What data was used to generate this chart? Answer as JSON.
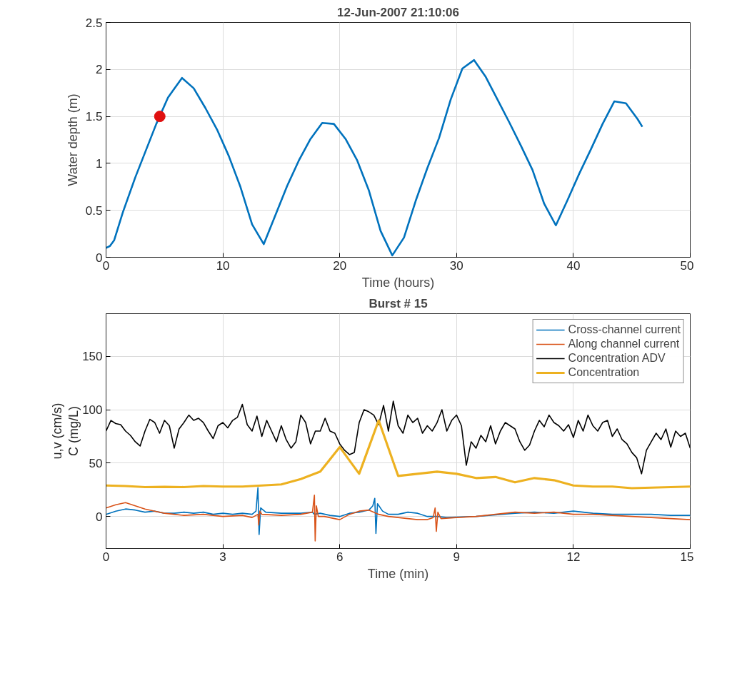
{
  "chart_data": [
    {
      "type": "line",
      "title": "12-Jun-2007 21:10:06",
      "xlabel": "Time (hours)",
      "ylabel": "Water depth (m)",
      "xlim": [
        0,
        50
      ],
      "xticks": [
        0,
        10,
        20,
        30,
        40,
        50
      ],
      "ylim": [
        0,
        2.5
      ],
      "yticks": [
        0,
        0.5,
        1,
        1.5,
        2,
        2.5
      ],
      "grid": true,
      "legend": false,
      "series": [
        {
          "color": "#0072bd",
          "x": [
            0,
            0.33,
            0.69,
            1.44,
            2.5,
            4.3,
            5.3,
            5.7,
            6.5,
            7.5,
            8.5,
            9.5,
            10.5,
            11.5,
            12.5,
            13.5,
            14.5,
            15.5,
            16.5,
            17.5,
            18.5,
            19.5,
            20.5,
            21.5,
            22.5,
            23.5,
            24.5,
            25.5,
            26.5,
            27.5,
            28.5,
            29.5,
            30.5,
            31.5,
            32.5,
            33.5,
            34.5,
            35.5,
            36.5,
            37.5,
            38.5,
            39.5,
            40.5,
            41.5,
            42.5,
            43.5,
            44.5,
            45.5,
            45.9
          ],
          "values": [
            0.1,
            0.12,
            0.18,
            0.48,
            0.85,
            1.42,
            1.7,
            1.77,
            1.91,
            1.8,
            1.59,
            1.36,
            1.08,
            0.75,
            0.35,
            0.14,
            0.45,
            0.76,
            1.03,
            1.26,
            1.43,
            1.42,
            1.26,
            1.03,
            0.71,
            0.28,
            0.02,
            0.21,
            0.6,
            0.95,
            1.27,
            1.68,
            2.01,
            2.1,
            1.92,
            1.68,
            1.44,
            1.19,
            0.93,
            0.57,
            0.34,
            0.61,
            0.89,
            1.15,
            1.42,
            1.66,
            1.64,
            1.47,
            1.39
          ]
        },
        {
          "type": "scatter",
          "marker": "circle",
          "color": "#e01010",
          "x": [
            4.6
          ],
          "values": [
            1.5
          ]
        }
      ]
    },
    {
      "type": "line",
      "title": "Burst # 15",
      "xlabel": "Time (min)",
      "ylabel": "C (mg/L)",
      "annotations": [
        "u,v (cm/s)"
      ],
      "xlim": [
        0,
        15
      ],
      "xticks": [
        0,
        3,
        6,
        9,
        12,
        15
      ],
      "ylim": [
        -30,
        190
      ],
      "yticks": [
        0,
        50,
        100,
        150
      ],
      "grid": true,
      "legend": "top right",
      "series": [
        {
          "name": "Cross-channel current",
          "color": "#0072bd",
          "x": [
            0,
            0.25,
            0.5,
            0.75,
            1,
            1.25,
            1.5,
            1.75,
            2,
            2.25,
            2.5,
            2.75,
            3,
            3.25,
            3.5,
            3.75,
            3.85,
            3.9,
            3.93,
            3.97,
            4.1,
            4.5,
            5,
            5.3,
            5.35,
            5.5,
            5.75,
            6,
            6.25,
            6.5,
            6.75,
            6.85,
            6.9,
            6.93,
            6.97,
            7.1,
            7.25,
            7.5,
            7.75,
            8,
            8.25,
            8.5,
            8.75,
            9.5,
            10.5,
            11,
            11.5,
            12,
            12.5,
            13,
            13.5,
            14,
            14.5,
            15
          ],
          "values": [
            2,
            5,
            7,
            6,
            4,
            5,
            3,
            3,
            4,
            3,
            4,
            2,
            3,
            2,
            3,
            2,
            5,
            27,
            -17,
            8,
            4,
            3,
            3,
            4,
            2,
            3,
            1,
            0,
            3,
            4,
            6,
            10,
            17,
            -16,
            12,
            5,
            2,
            2,
            4,
            3,
            0,
            0,
            -1,
            0,
            3,
            4,
            3,
            5,
            3,
            2,
            2,
            2,
            1,
            1
          ]
        },
        {
          "name": "Along channel current",
          "color": "#d95319",
          "x": [
            0,
            0.25,
            0.5,
            0.75,
            1,
            1.25,
            1.5,
            1.75,
            2,
            2.5,
            3,
            3.5,
            3.75,
            3.9,
            3.92,
            3.95,
            4,
            4.5,
            5,
            5.3,
            5.35,
            5.37,
            5.4,
            5.45,
            5.6,
            6,
            6.25,
            6.5,
            6.75,
            7,
            7.25,
            7.5,
            7.75,
            8,
            8.25,
            8.4,
            8.45,
            8.48,
            8.52,
            8.6,
            9,
            9.5,
            10,
            10.5,
            11,
            11.5,
            12,
            12.5,
            13,
            13.5,
            14,
            14.5,
            15
          ],
          "values": [
            8,
            11,
            13,
            10,
            7,
            5,
            3,
            2,
            1,
            2,
            0,
            1,
            -1,
            2,
            -8,
            5,
            2,
            1,
            2,
            4,
            20,
            -23,
            10,
            0,
            0,
            -3,
            2,
            5,
            6,
            2,
            0,
            -1,
            -2,
            -3,
            -3,
            -1,
            8,
            -14,
            4,
            -2,
            -1,
            0,
            2,
            4,
            3,
            4,
            2,
            2,
            1,
            0,
            -1,
            -2,
            -3
          ]
        },
        {
          "name": "Concentration ADV",
          "color": "#000000",
          "x": [
            0,
            0.125,
            0.25,
            0.375,
            0.5,
            0.625,
            0.75,
            0.875,
            1,
            1.125,
            1.25,
            1.375,
            1.5,
            1.625,
            1.75,
            1.875,
            2,
            2.125,
            2.25,
            2.375,
            2.5,
            2.625,
            2.75,
            2.875,
            3,
            3.125,
            3.25,
            3.375,
            3.5,
            3.625,
            3.75,
            3.875,
            4,
            4.125,
            4.25,
            4.375,
            4.5,
            4.625,
            4.75,
            4.875,
            5,
            5.125,
            5.25,
            5.375,
            5.5,
            5.625,
            5.75,
            5.875,
            6,
            6.125,
            6.25,
            6.375,
            6.5,
            6.625,
            6.75,
            6.875,
            7,
            7.125,
            7.25,
            7.375,
            7.5,
            7.625,
            7.75,
            7.875,
            8,
            8.125,
            8.25,
            8.375,
            8.5,
            8.625,
            8.75,
            8.875,
            9,
            9.125,
            9.25,
            9.375,
            9.5,
            9.625,
            9.75,
            9.875,
            10,
            10.125,
            10.25,
            10.375,
            10.5,
            10.625,
            10.75,
            10.875,
            11,
            11.125,
            11.25,
            11.375,
            11.5,
            11.625,
            11.75,
            11.875,
            12,
            12.125,
            12.25,
            12.375,
            12.5,
            12.625,
            12.75,
            12.875,
            13,
            13.125,
            13.25,
            13.375,
            13.5,
            13.625,
            13.75,
            13.875,
            14,
            14.125,
            14.25,
            14.375,
            14.5,
            14.625,
            14.75,
            14.875,
            15
          ],
          "values": [
            80,
            90,
            87,
            86,
            80,
            76,
            70,
            66,
            80,
            91,
            88,
            78,
            90,
            85,
            64,
            82,
            88,
            95,
            90,
            92,
            88,
            80,
            73,
            85,
            88,
            83,
            90,
            93,
            105,
            86,
            80,
            94,
            75,
            90,
            80,
            70,
            85,
            72,
            64,
            70,
            95,
            88,
            68,
            80,
            80,
            92,
            80,
            78,
            68,
            62,
            58,
            60,
            88,
            100,
            98,
            95,
            86,
            104,
            80,
            108,
            85,
            78,
            95,
            88,
            92,
            78,
            85,
            80,
            88,
            100,
            80,
            90,
            95,
            85,
            48,
            70,
            64,
            76,
            70,
            85,
            68,
            80,
            88,
            85,
            82,
            70,
            62,
            67,
            80,
            90,
            84,
            95,
            88,
            85,
            80,
            86,
            74,
            90,
            80,
            95,
            85,
            80,
            88,
            90,
            75,
            82,
            72,
            68,
            60,
            55,
            40,
            62,
            70,
            78,
            72,
            82,
            65,
            80,
            75,
            78,
            64
          ]
        },
        {
          "name": "Concentration",
          "color": "#edb120",
          "x": [
            0,
            0.5,
            1,
            1.5,
            2,
            2.5,
            3,
            3.5,
            4,
            4.5,
            5,
            5.5,
            6,
            6.5,
            7,
            7.5,
            8,
            8.5,
            9,
            9.5,
            10,
            10.5,
            11,
            11.5,
            12,
            12.5,
            13,
            13.5,
            14,
            14.5,
            15
          ],
          "values": [
            29,
            28.5,
            27.5,
            27.8,
            27.5,
            28.5,
            28,
            28,
            29,
            30,
            35,
            42,
            65,
            40,
            90,
            38,
            40,
            42,
            40,
            36,
            37,
            32,
            36,
            34,
            29,
            28,
            28,
            26.5,
            27,
            27.5,
            28
          ]
        }
      ]
    }
  ]
}
